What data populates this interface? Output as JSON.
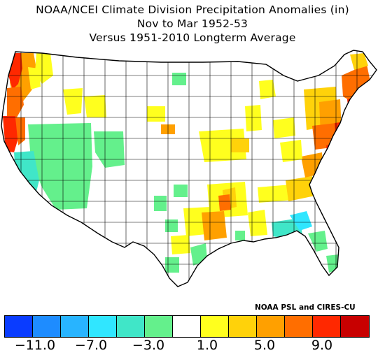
{
  "title": {
    "line1": "NOAA/NCEI Climate Division Precipitation Anomalies (in)",
    "line2": "Nov to Mar 1952-53",
    "line3": "Versus 1951-2010 Longterm Average"
  },
  "credit": "NOAA PSL and CIRES-CU",
  "legend": {
    "colors": [
      "#0a3cff",
      "#1e8cff",
      "#28b4ff",
      "#30e6ff",
      "#40e6c8",
      "#64f08c",
      "#ffffff",
      "#ffff1e",
      "#ffd20a",
      "#ffa000",
      "#ff6e00",
      "#ff2800",
      "#c80000"
    ],
    "tick_labels": [
      "-11.0",
      "-7.0",
      "-3.0",
      "1.0",
      "5.0",
      "9.0"
    ]
  },
  "colors": {
    "wet_heavy": "#ff2800",
    "wet_strong": "#ff6e00",
    "wet_moderate": "#ffa000",
    "wet_light": "#ffd20a",
    "wet_slight": "#ffff1e",
    "dry_slight": "#64f08c",
    "dry_moderate": "#40e6c8",
    "dry_strong": "#30e6ff",
    "neutral": "#ffffff",
    "border": "#000000"
  }
}
